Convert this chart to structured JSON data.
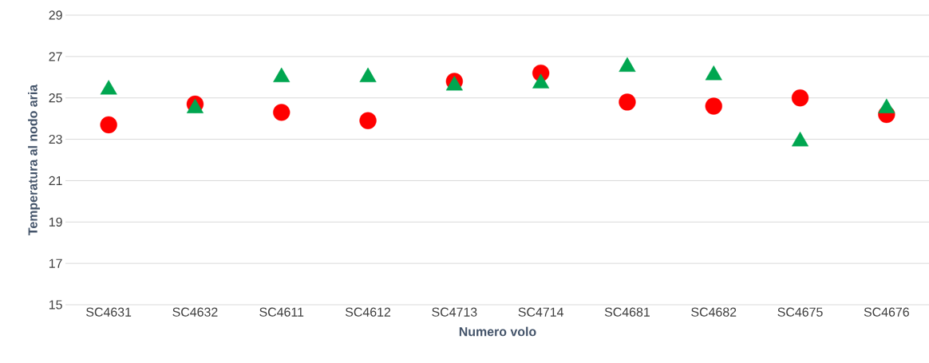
{
  "chart_data": {
    "type": "scatter",
    "xlabel": "Numero volo",
    "ylabel": "Temperatura al nodo aria",
    "categories": [
      "SC4631",
      "SC4632",
      "SC4611",
      "SC4612",
      "SC4713",
      "SC4714",
      "SC4681",
      "SC4682",
      "SC4675",
      "SC4676"
    ],
    "series": [
      {
        "color": "#ff0000",
        "marker": "circle",
        "values": [
          23.7,
          24.7,
          24.3,
          23.9,
          25.8,
          26.2,
          24.8,
          24.6,
          25.0,
          24.2
        ]
      },
      {
        "color": "#00a650",
        "marker": "triangle",
        "values": [
          25.4,
          24.5,
          26.0,
          26.0,
          25.6,
          25.7,
          26.5,
          26.1,
          22.9,
          24.5
        ]
      }
    ],
    "ylim": [
      15,
      29
    ],
    "yticks": [
      15,
      17,
      19,
      21,
      23,
      25,
      27,
      29
    ],
    "grid": "y"
  }
}
